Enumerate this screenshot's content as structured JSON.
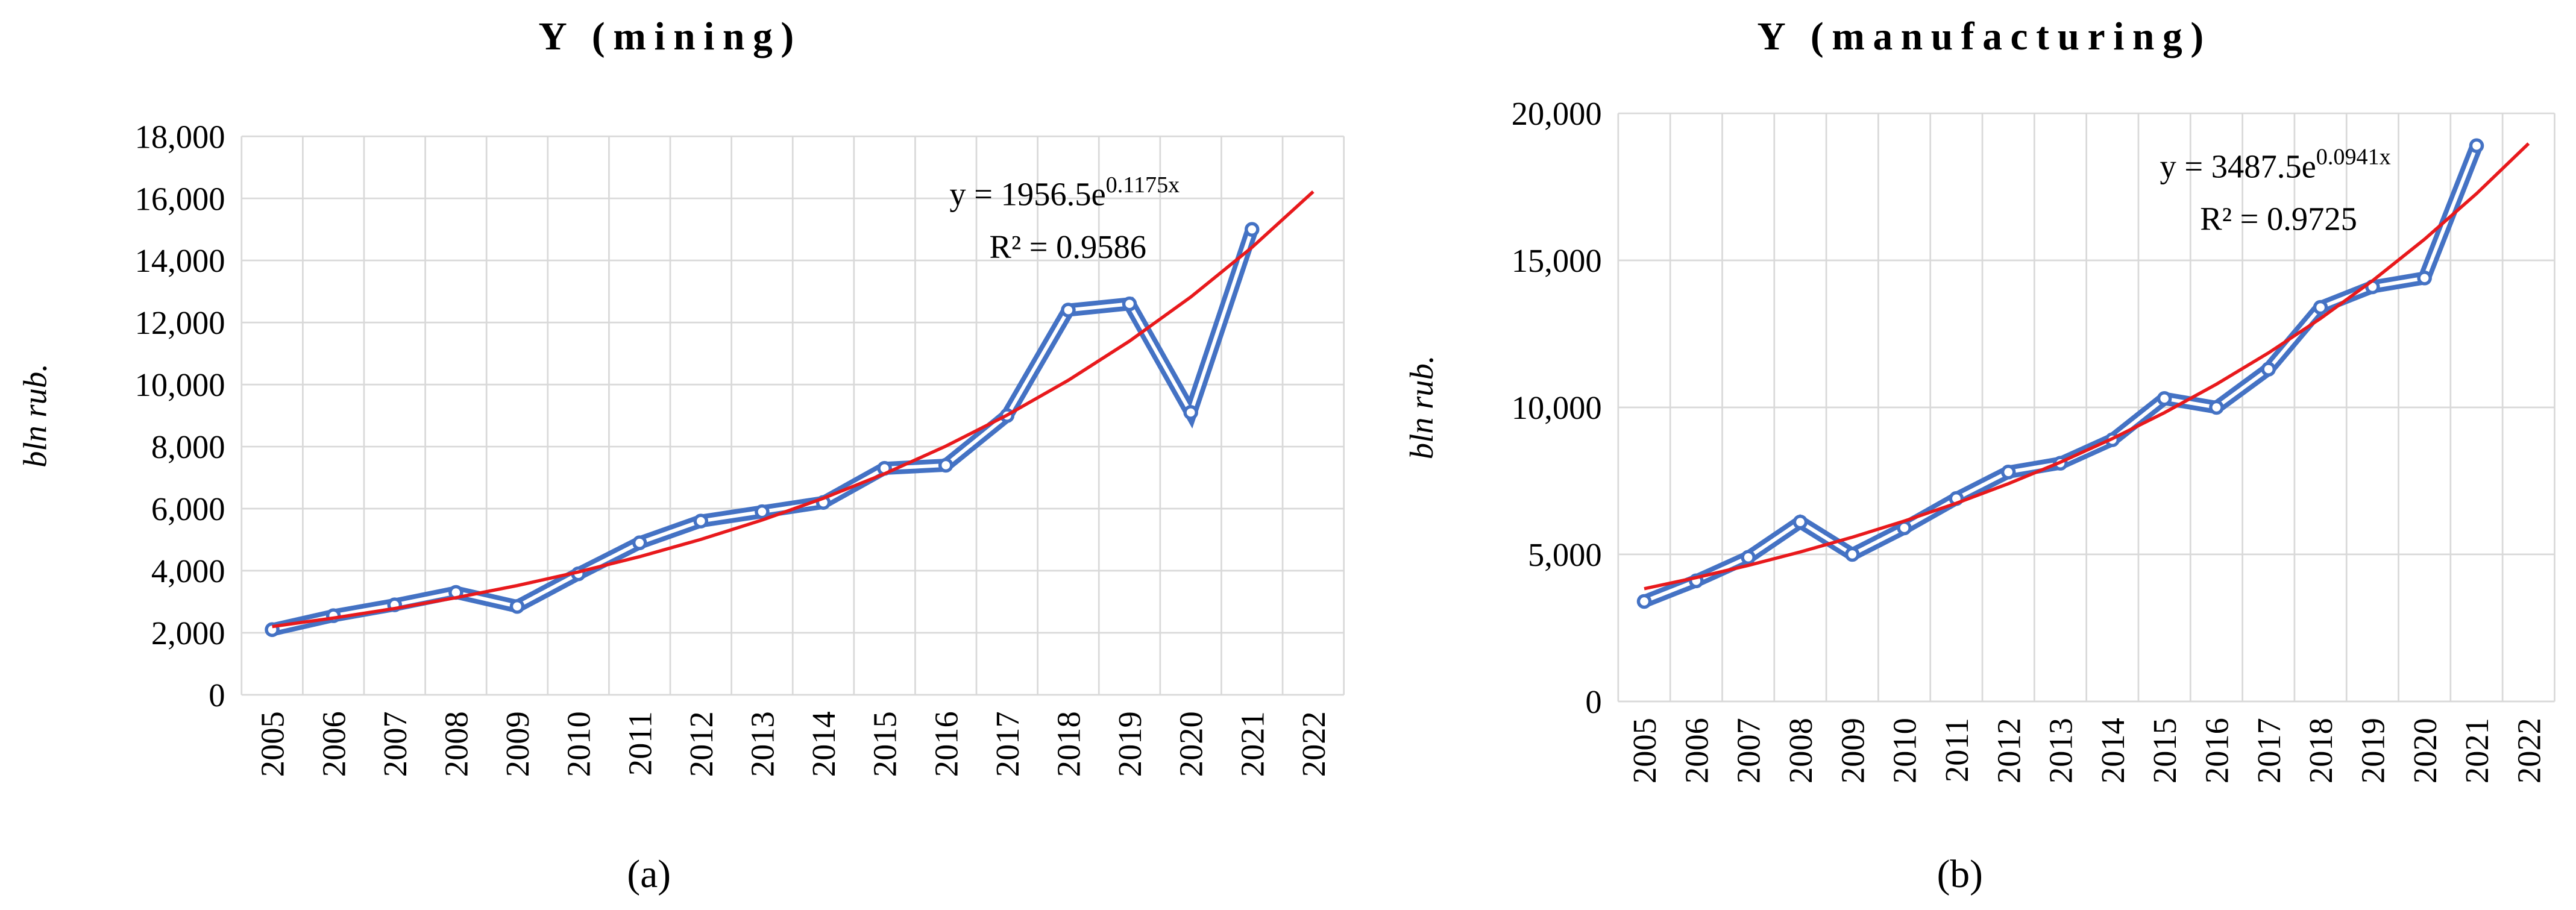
{
  "chart_data": [
    {
      "type": "line",
      "title": "Y (mining)",
      "panel_label": "(a)",
      "y_label": "bln rub.",
      "categories": [
        "2005",
        "2006",
        "2007",
        "2008",
        "2009",
        "2010",
        "2011",
        "2012",
        "2013",
        "2014",
        "2015",
        "2016",
        "2017",
        "2018",
        "2019",
        "2020",
        "2021",
        "2022"
      ],
      "values": [
        2100,
        2550,
        2900,
        3300,
        2850,
        3900,
        4900,
        5600,
        5900,
        6200,
        7300,
        7400,
        9000,
        12400,
        12600,
        9100,
        15000,
        null
      ],
      "color": "#4472c4",
      "trendline": {
        "color": "#e8191c",
        "values": [
          2200,
          2475,
          2783,
          3130,
          3521,
          3960,
          4453,
          5009,
          5633,
          6335,
          7125,
          8014,
          9013,
          10137,
          11401,
          12822,
          14421,
          16218
        ]
      },
      "equation": {
        "base": "y = 1956.5e",
        "exponent": "0.1175x",
        "r2": "R² = 0.9586"
      },
      "ylim": [
        0,
        18000
      ],
      "yticks": [
        0,
        {
          "value": 2000,
          "label": "2,000"
        },
        {
          "value": 4000,
          "label": "4,000"
        },
        {
          "value": 6000,
          "label": "6,000"
        },
        {
          "value": 8000,
          "label": "8,000"
        },
        {
          "value": 10000,
          "label": "10,000"
        },
        {
          "value": 12000,
          "label": "12,000"
        },
        {
          "value": 14000,
          "label": "14,000"
        },
        {
          "value": 16000,
          "label": "16,000"
        },
        {
          "value": 18000,
          "label": "18,000"
        }
      ],
      "grid": true
    },
    {
      "type": "line",
      "title": "Y (manufacturing)",
      "panel_label": "(b)",
      "y_label": "bln rub.",
      "categories": [
        "2005",
        "2006",
        "2007",
        "2008",
        "2009",
        "2010",
        "2011",
        "2012",
        "2013",
        "2014",
        "2015",
        "2016",
        "2017",
        "2018",
        "2019",
        "2020",
        "2021",
        "2022"
      ],
      "values": [
        3400,
        4100,
        4900,
        6100,
        5000,
        5900,
        6900,
        7800,
        8100,
        8900,
        10300,
        10000,
        11300,
        13400,
        14100,
        14400,
        18900,
        null
      ],
      "color": "#4472c4",
      "trendline": {
        "color": "#e8191c",
        "values": [
          3832,
          4210,
          4625,
          5082,
          5583,
          6134,
          6739,
          7404,
          8134,
          8937,
          9819,
          10788,
          11852,
          13021,
          14306,
          15718,
          17269,
          18973
        ]
      },
      "equation": {
        "base": "y = 3487.5e",
        "exponent": "0.0941x",
        "r2": "R² = 0.9725"
      },
      "ylim": [
        0,
        20000
      ],
      "yticks": [
        0,
        {
          "value": 5000,
          "label": "5,000"
        },
        {
          "value": 10000,
          "label": "10,000"
        },
        {
          "value": 15000,
          "label": "15,000"
        },
        {
          "value": 20000,
          "label": "20,000"
        }
      ],
      "grid": true
    }
  ]
}
